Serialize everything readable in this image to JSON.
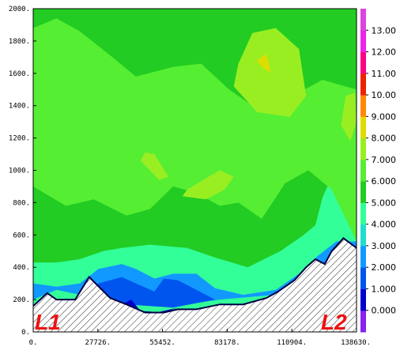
{
  "chart_data": {
    "type": "heatmap",
    "xlim": [
      0,
      138630
    ],
    "ylim": [
      0,
      2000
    ],
    "x_ticks": [
      "0.",
      "27726.",
      "55452.",
      "83178.",
      "110904.",
      "138630."
    ],
    "y_ticks": [
      "0.",
      "200.",
      "400.",
      "600.",
      "800.",
      "1000.",
      "1200.",
      "1400.",
      "1600.",
      "1800.",
      "2000."
    ],
    "colorbar": {
      "labels": [
        "0.000",
        "1.000",
        "2.000",
        "3.000",
        "4.000",
        "5.000",
        "6.000",
        "7.000",
        "8.000",
        "9.000",
        "10.00",
        "11.00",
        "12.00",
        "13.00"
      ],
      "colors": [
        "#8822ee",
        "#0000cc",
        "#0055ee",
        "#1199ff",
        "#22ddcc",
        "#33ff99",
        "#22cc22",
        "#55ee33",
        "#99ee22",
        "#dddd00",
        "#ff8800",
        "#ee2200",
        "#ff0088",
        "#ee22ee",
        "#dd44dd"
      ]
    },
    "grid": false,
    "endpoint_labels": [
      "L1",
      "L2"
    ],
    "terrain": {
      "x": [
        0,
        6000,
        10000,
        18000,
        24000,
        33000,
        40000,
        48000,
        56000,
        62000,
        70000,
        80000,
        90000,
        100000,
        105000,
        112000,
        117000,
        121000,
        125000,
        128000,
        133000,
        138630
      ],
      "y": [
        160,
        240,
        200,
        200,
        340,
        210,
        170,
        120,
        120,
        140,
        140,
        170,
        170,
        210,
        250,
        320,
        400,
        450,
        420,
        500,
        580,
        520
      ]
    },
    "background_value": 5.5,
    "regions": [
      {
        "value": 3.5,
        "polygon": [
          [
            0,
            0
          ],
          [
            0,
            320
          ],
          [
            12000,
            340
          ],
          [
            26000,
            460
          ],
          [
            40000,
            430
          ],
          [
            52000,
            420
          ],
          [
            70000,
            420
          ],
          [
            80000,
            340
          ],
          [
            100000,
            300
          ],
          [
            112000,
            420
          ],
          [
            120000,
            520
          ],
          [
            126000,
            620
          ],
          [
            133000,
            660
          ],
          [
            138630,
            680
          ],
          [
            138630,
            0
          ]
        ]
      },
      {
        "value": 5.0,
        "polygon": [
          [
            0,
            0
          ],
          [
            0,
            430
          ],
          [
            10000,
            430
          ],
          [
            20000,
            450
          ],
          [
            30000,
            500
          ],
          [
            38000,
            520
          ],
          [
            50000,
            540
          ],
          [
            66000,
            520
          ],
          [
            78000,
            460
          ],
          [
            92000,
            400
          ],
          [
            106000,
            500
          ],
          [
            116000,
            600
          ],
          [
            126000,
            720
          ],
          [
            138630,
            780
          ],
          [
            138630,
            0
          ]
        ]
      },
      {
        "value": 4.5,
        "polygon": [
          [
            120000,
            600
          ],
          [
            124000,
            830
          ],
          [
            128000,
            960
          ],
          [
            133000,
            980
          ],
          [
            138630,
            960
          ],
          [
            138630,
            600
          ]
        ]
      },
      {
        "value": 2.5,
        "polygon": [
          [
            0,
            200
          ],
          [
            0,
            300
          ],
          [
            10000,
            280
          ],
          [
            20000,
            300
          ],
          [
            28000,
            390
          ],
          [
            38000,
            420
          ],
          [
            44000,
            390
          ],
          [
            52000,
            330
          ],
          [
            60000,
            360
          ],
          [
            70000,
            360
          ],
          [
            78000,
            270
          ],
          [
            90000,
            230
          ],
          [
            104000,
            260
          ],
          [
            114000,
            360
          ],
          [
            122000,
            470
          ],
          [
            130000,
            560
          ],
          [
            138630,
            560
          ],
          [
            138630,
            380
          ],
          [
            128000,
            420
          ],
          [
            118000,
            340
          ],
          [
            104000,
            230
          ],
          [
            80000,
            200
          ],
          [
            60000,
            160
          ],
          [
            40000,
            180
          ],
          [
            20000,
            230
          ],
          [
            10000,
            260
          ]
        ]
      },
      {
        "value": 1.5,
        "polygon": [
          [
            20000,
            230
          ],
          [
            28000,
            300
          ],
          [
            38000,
            340
          ],
          [
            44000,
            300
          ],
          [
            52000,
            250
          ],
          [
            56000,
            330
          ],
          [
            62000,
            320
          ],
          [
            70000,
            260
          ],
          [
            78000,
            200
          ],
          [
            60000,
            150
          ],
          [
            40000,
            170
          ]
        ]
      },
      {
        "value": 0.5,
        "polygon": [
          [
            38000,
            170
          ],
          [
            42000,
            200
          ],
          [
            46000,
            130
          ],
          [
            56000,
            120
          ],
          [
            62000,
            150
          ],
          [
            50000,
            110
          ]
        ]
      },
      {
        "value": 6.5,
        "polygon": [
          [
            0,
            1880
          ],
          [
            10000,
            1940
          ],
          [
            20000,
            1860
          ],
          [
            34000,
            1700
          ],
          [
            44000,
            1580
          ],
          [
            60000,
            1640
          ],
          [
            72000,
            1660
          ],
          [
            84000,
            1500
          ],
          [
            96000,
            1380
          ],
          [
            110000,
            1450
          ],
          [
            124000,
            1560
          ],
          [
            138630,
            1500
          ],
          [
            138630,
            560
          ],
          [
            128000,
            880
          ],
          [
            118000,
            1000
          ],
          [
            108000,
            920
          ],
          [
            98000,
            700
          ],
          [
            88000,
            800
          ],
          [
            80000,
            780
          ],
          [
            70000,
            860
          ],
          [
            60000,
            900
          ],
          [
            50000,
            760
          ],
          [
            40000,
            720
          ],
          [
            26000,
            820
          ],
          [
            14000,
            780
          ],
          [
            0,
            900
          ]
        ]
      },
      {
        "value": 7.5,
        "polygon": [
          [
            88000,
            1660
          ],
          [
            94000,
            1850
          ],
          [
            104000,
            1880
          ],
          [
            114000,
            1750
          ],
          [
            117000,
            1460
          ],
          [
            110000,
            1330
          ],
          [
            96000,
            1360
          ],
          [
            86000,
            1520
          ]
        ]
      },
      {
        "value": 7.5,
        "polygon": [
          [
            64000,
            840
          ],
          [
            66000,
            880
          ],
          [
            74000,
            950
          ],
          [
            80000,
            1000
          ],
          [
            86000,
            960
          ],
          [
            82000,
            880
          ],
          [
            74000,
            820
          ]
        ]
      },
      {
        "value": 7.5,
        "polygon": [
          [
            46000,
            1060
          ],
          [
            48000,
            1110
          ],
          [
            52000,
            1100
          ],
          [
            58000,
            960
          ],
          [
            54000,
            940
          ]
        ]
      },
      {
        "value": 7.5,
        "polygon": [
          [
            132000,
            1280
          ],
          [
            134000,
            1460
          ],
          [
            138000,
            1480
          ],
          [
            138630,
            1300
          ],
          [
            136000,
            1180
          ]
        ]
      },
      {
        "value": 9.0,
        "polygon": [
          [
            96000,
            1680
          ],
          [
            100000,
            1720
          ],
          [
            102000,
            1600
          ],
          [
            98000,
            1640
          ]
        ]
      }
    ]
  }
}
